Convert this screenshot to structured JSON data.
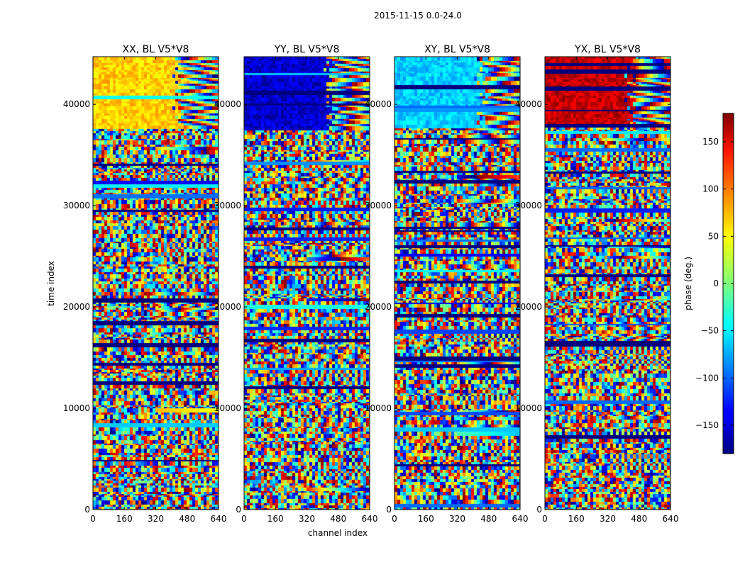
{
  "chart_data": {
    "type": "heatmap",
    "suptitle": "2015-11-15 0.0-24.0",
    "xlabel": "channel index",
    "ylabel": "time index",
    "xlim": [
      0,
      640
    ],
    "ylim": [
      0,
      44700
    ],
    "x_ticks": [
      0,
      160,
      320,
      480,
      640
    ],
    "y_ticks": [
      0,
      10000,
      20000,
      30000,
      40000
    ],
    "x_tick_labels": [
      "0",
      "160",
      "320",
      "480",
      "640"
    ],
    "y_tick_labels": [
      "0",
      "10000",
      "20000",
      "30000",
      "40000"
    ],
    "panels": [
      {
        "title": "XX, BL V5*V8",
        "pol": "XX",
        "baseline": "V5*V8"
      },
      {
        "title": "YY, BL V5*V8",
        "pol": "YY",
        "baseline": "V5*V8"
      },
      {
        "title": "XY, BL V5*V8",
        "pol": "XY",
        "baseline": "V5*V8"
      },
      {
        "title": "YX, BL V5*V8",
        "pol": "YX",
        "baseline": "V5*V8"
      }
    ],
    "colorbar": {
      "label": "phase (deg.)",
      "colormap": "jet",
      "range": [
        -180,
        180
      ],
      "ticks": [
        150,
        100,
        50,
        0,
        -50,
        -100,
        -150
      ],
      "tick_labels": [
        "150",
        "100",
        "50",
        "0",
        "−50",
        "−100",
        "−150"
      ]
    }
  },
  "colors": {
    "axis": "#000000",
    "background": "#ffffff"
  }
}
